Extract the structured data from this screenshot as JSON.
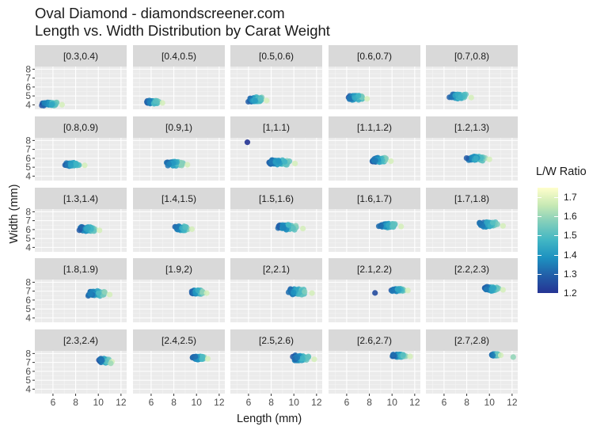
{
  "title": {
    "line1": "Oval Diamond - diamondscreener.com",
    "line2": "Length vs. Width Distribution by Carat Weight"
  },
  "axes": {
    "xlabel": "Length (mm)",
    "ylabel": "Width (mm)",
    "x_ticks": [
      6,
      8,
      10,
      12
    ],
    "y_ticks": [
      4,
      5,
      6,
      7,
      8
    ]
  },
  "legend": {
    "title": "L/W Ratio",
    "ticks": [
      "1.7",
      "1.6",
      "1.5",
      "1.4",
      "1.3",
      "1.2"
    ],
    "colors": [
      "#ffffcc",
      "#c7e9b4",
      "#7fcdbb",
      "#41b6c4",
      "#1d91c0",
      "#225ea8",
      "#253494"
    ]
  },
  "chart_data": {
    "type": "scatter",
    "title": "Oval Diamond - diamondscreener.com / Length vs. Width Distribution by Carat Weight",
    "xlabel": "Length (mm)",
    "ylabel": "Width (mm)",
    "xlim": [
      4.4,
      12.5
    ],
    "ylim": [
      3.5,
      8.3
    ],
    "grid": true,
    "legend_position": "right",
    "color_variable": "L/W Ratio",
    "color_range": [
      1.2,
      1.75
    ],
    "facets": [
      {
        "label": "[0.3,0.4)",
        "x_range": [
          4.6,
          6.8
        ],
        "y_range": [
          3.8,
          4.4
        ],
        "center": [
          5.6,
          4.1
        ],
        "outliers": []
      },
      {
        "label": "[0.4,0.5)",
        "x_range": [
          5.3,
          7.0
        ],
        "y_range": [
          4.0,
          4.6
        ],
        "center": [
          6.2,
          4.3
        ],
        "outliers": []
      },
      {
        "label": "[0.5,0.6)",
        "x_range": [
          5.6,
          7.6
        ],
        "y_range": [
          4.2,
          5.0
        ],
        "center": [
          6.6,
          4.6
        ],
        "outliers": []
      },
      {
        "label": "[0.6,0.7)",
        "x_range": [
          5.8,
          7.8
        ],
        "y_range": [
          4.4,
          5.2
        ],
        "center": [
          6.9,
          4.8
        ],
        "outliers": []
      },
      {
        "label": "[0.7,0.8)",
        "x_range": [
          6.0,
          8.4
        ],
        "y_range": [
          4.5,
          5.4
        ],
        "center": [
          7.2,
          5.0
        ],
        "outliers": []
      },
      {
        "label": "[0.8,0.9)",
        "x_range": [
          6.6,
          8.8
        ],
        "y_range": [
          5.0,
          5.6
        ],
        "center": [
          7.6,
          5.3
        ],
        "outliers": []
      },
      {
        "label": "[0.9,1)",
        "x_range": [
          6.8,
          9.2
        ],
        "y_range": [
          5.0,
          5.8
        ],
        "center": [
          7.9,
          5.4
        ],
        "outliers": []
      },
      {
        "label": "[1,1.1)",
        "x_range": [
          7.2,
          10.1
        ],
        "y_range": [
          5.1,
          6.0
        ],
        "center": [
          8.4,
          5.6
        ],
        "outliers": [
          [
            5.9,
            7.8
          ]
        ]
      },
      {
        "label": "[1.1,1.2)",
        "x_range": [
          7.9,
          9.9
        ],
        "y_range": [
          5.4,
          6.2
        ],
        "center": [
          8.7,
          5.9
        ],
        "outliers": []
      },
      {
        "label": "[1.2,1.3)",
        "x_range": [
          7.6,
          10.0
        ],
        "y_range": [
          5.6,
          6.4
        ],
        "center": [
          8.6,
          6.0
        ],
        "outliers": []
      },
      {
        "label": "[1.3,1.4)",
        "x_range": [
          7.9,
          10.1
        ],
        "y_range": [
          5.6,
          6.5
        ],
        "center": [
          8.9,
          6.0
        ],
        "outliers": []
      },
      {
        "label": "[1.4,1.5)",
        "x_range": [
          7.8,
          9.6
        ],
        "y_range": [
          5.8,
          6.5
        ],
        "center": [
          8.6,
          6.2
        ],
        "outliers": []
      },
      {
        "label": "[1.5,1.6)",
        "x_range": [
          8.0,
          10.8
        ],
        "y_range": [
          5.8,
          6.7
        ],
        "center": [
          9.2,
          6.3
        ],
        "outliers": []
      },
      {
        "label": "[1.6,1.7)",
        "x_range": [
          8.4,
          10.8
        ],
        "y_range": [
          6.1,
          6.8
        ],
        "center": [
          9.6,
          6.5
        ],
        "outliers": []
      },
      {
        "label": "[1.7,1.8)",
        "x_range": [
          8.6,
          11.2
        ],
        "y_range": [
          6.1,
          7.0
        ],
        "center": [
          9.6,
          6.6
        ],
        "outliers": []
      },
      {
        "label": "[1.8,1.9)",
        "x_range": [
          8.6,
          11.0
        ],
        "y_range": [
          6.3,
          7.2
        ],
        "center": [
          9.7,
          6.8
        ],
        "outliers": []
      },
      {
        "label": "[1.9,2)",
        "x_range": [
          9.2,
          10.9
        ],
        "y_range": [
          6.5,
          7.3
        ],
        "center": [
          10.0,
          6.9
        ],
        "outliers": []
      },
      {
        "label": "[2,2.1)",
        "x_range": [
          8.8,
          11.6
        ],
        "y_range": [
          6.4,
          7.5
        ],
        "center": [
          10.0,
          7.0
        ],
        "outliers": []
      },
      {
        "label": "[2.1,2.2)",
        "x_range": [
          9.6,
          11.4
        ],
        "y_range": [
          6.9,
          7.4
        ],
        "center": [
          10.3,
          7.2
        ],
        "outliers": [
          [
            8.5,
            6.8
          ]
        ]
      },
      {
        "label": "[2.2,2.3)",
        "x_range": [
          9.2,
          11.2
        ],
        "y_range": [
          6.9,
          7.6
        ],
        "center": [
          10.1,
          7.3
        ],
        "outliers": []
      },
      {
        "label": "[2.3,2.4)",
        "x_range": [
          9.8,
          11.2
        ],
        "y_range": [
          6.8,
          7.6
        ],
        "center": [
          10.2,
          7.4
        ],
        "outliers": [
          [
            11.1,
            6.9
          ]
        ]
      },
      {
        "label": "[2.4,2.5)",
        "x_range": [
          9.4,
          11.0
        ],
        "y_range": [
          7.2,
          7.8
        ],
        "center": [
          10.2,
          7.5
        ],
        "outliers": []
      },
      {
        "label": "[2.5,2.6)",
        "x_range": [
          9.4,
          11.8
        ],
        "y_range": [
          7.0,
          8.0
        ],
        "center": [
          10.4,
          7.5
        ],
        "outliers": []
      },
      {
        "label": "[2.6,2.7)",
        "x_range": [
          9.6,
          11.6
        ],
        "y_range": [
          7.5,
          8.0
        ],
        "center": [
          10.6,
          7.7
        ],
        "outliers": []
      },
      {
        "label": "[2.7,2.8)",
        "x_range": [
          10.0,
          11.0
        ],
        "y_range": [
          7.7,
          8.0
        ],
        "center": [
          10.5,
          7.9
        ],
        "outliers": [
          [
            12.1,
            7.6
          ]
        ]
      }
    ]
  }
}
